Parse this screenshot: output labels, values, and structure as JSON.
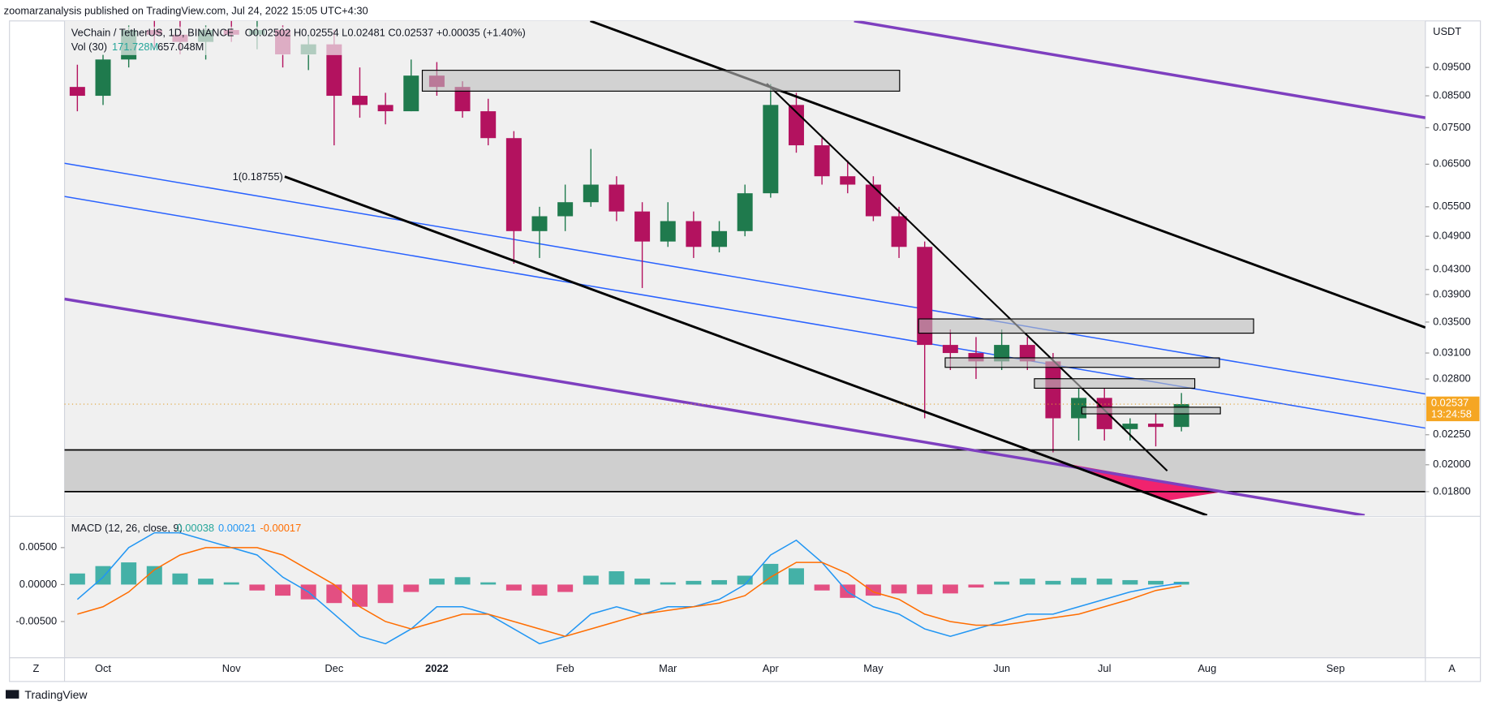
{
  "header": {
    "publisher": "zoomarzanalysis published on TradingView.com, Jul 24, 2022 15:05 UTC+4:30",
    "brand": "TradingView",
    "corner_left": "Z",
    "corner_right": "A"
  },
  "chart_data": [
    {
      "type": "candlestick",
      "title": "VeChain / TetherUS, 1D, BINANCE",
      "ohlc_text": "O0.02502 H0.02554 L0.02481 C0.02537 +0.00035 (+1.40%)",
      "volume_label": "Vol (30)",
      "volume_values": [
        "171.728M",
        "657.048M"
      ],
      "annotation": "1(0.18755)",
      "currency": "USDT",
      "countdown": "13:24:58",
      "up_color": "#1f7a4d",
      "down_color": "#b3125f",
      "log_scale": true,
      "ylim": [
        0.0164,
        0.114
      ],
      "yticks": [
        {
          "value": 0.095,
          "label": "0.09500"
        },
        {
          "value": 0.085,
          "label": "0.08500"
        },
        {
          "value": 0.075,
          "label": "0.07500"
        },
        {
          "value": 0.065,
          "label": "0.06500"
        },
        {
          "value": 0.055,
          "label": "0.05500"
        },
        {
          "value": 0.049,
          "label": "0.04900"
        },
        {
          "value": 0.043,
          "label": "0.04300"
        },
        {
          "value": 0.039,
          "label": "0.03900"
        },
        {
          "value": 0.035,
          "label": "0.03500"
        },
        {
          "value": 0.031,
          "label": "0.03100"
        },
        {
          "value": 0.028,
          "label": "0.02800"
        },
        {
          "value": 0.0225,
          "label": "0.02250"
        },
        {
          "value": 0.02,
          "label": "0.02000"
        },
        {
          "value": 0.018,
          "label": "0.01800"
        }
      ],
      "categories": [
        null,
        "Oct",
        null,
        null,
        null,
        null,
        "Nov",
        null,
        null,
        null,
        "Dec",
        null,
        null,
        null,
        "2022",
        null,
        null,
        null,
        null,
        "Feb",
        null,
        null,
        null,
        "Mar",
        null,
        null,
        null,
        "Apr",
        null,
        null,
        null,
        "May",
        null,
        null,
        null,
        null,
        "Jun",
        null,
        null,
        null,
        "Jul",
        null,
        null,
        null,
        "Aug",
        null,
        null,
        null,
        null,
        "Sep",
        null,
        null,
        null
      ],
      "open": [
        0.088,
        0.085,
        0.098,
        0.11,
        0.108,
        0.105,
        0.11,
        0.108,
        0.11,
        0.1,
        0.104,
        0.085,
        0.082,
        0.08,
        0.092,
        0.088,
        0.08,
        0.072,
        0.05,
        0.053,
        0.056,
        0.06,
        0.054,
        0.048,
        0.052,
        0.047,
        0.05,
        0.058,
        0.082,
        0.07,
        0.062,
        0.06,
        0.053,
        0.047,
        0.032,
        0.031,
        0.03,
        0.032,
        0.03,
        0.024,
        0.026,
        0.023,
        0.0235,
        0.0232,
        null,
        null,
        null,
        null,
        null,
        null,
        null,
        null,
        null
      ],
      "high": [
        0.096,
        0.1,
        0.112,
        0.116,
        0.114,
        0.112,
        0.114,
        0.114,
        0.112,
        0.108,
        0.11,
        0.095,
        0.086,
        0.098,
        0.097,
        0.09,
        0.084,
        0.074,
        0.055,
        0.06,
        0.069,
        0.062,
        0.056,
        0.056,
        0.054,
        0.052,
        0.06,
        0.089,
        0.086,
        0.072,
        0.066,
        0.062,
        0.055,
        0.048,
        0.034,
        0.033,
        0.034,
        0.033,
        0.031,
        0.027,
        0.027,
        0.024,
        0.0245,
        0.0265,
        null,
        null,
        null,
        null,
        null,
        null,
        null,
        null,
        null
      ],
      "low": [
        0.08,
        0.082,
        0.095,
        0.102,
        0.1,
        0.098,
        0.105,
        0.102,
        0.095,
        0.094,
        0.07,
        0.078,
        0.076,
        0.08,
        0.085,
        0.078,
        0.07,
        0.044,
        0.045,
        0.05,
        0.055,
        0.052,
        0.04,
        0.047,
        0.045,
        0.046,
        0.049,
        0.057,
        0.068,
        0.06,
        0.058,
        0.052,
        0.045,
        0.024,
        0.029,
        0.028,
        0.029,
        0.029,
        0.021,
        0.022,
        0.022,
        0.022,
        0.0215,
        0.0228,
        null,
        null,
        null,
        null,
        null,
        null,
        null,
        null,
        null
      ],
      "close": [
        0.085,
        0.098,
        0.11,
        0.108,
        0.105,
        0.11,
        0.108,
        0.11,
        0.1,
        0.104,
        0.085,
        0.082,
        0.08,
        0.092,
        0.088,
        0.08,
        0.072,
        0.05,
        0.053,
        0.056,
        0.06,
        0.054,
        0.048,
        0.052,
        0.047,
        0.05,
        0.058,
        0.082,
        0.07,
        0.062,
        0.06,
        0.053,
        0.047,
        0.032,
        0.031,
        0.03,
        0.032,
        0.03,
        0.024,
        0.026,
        0.023,
        0.0235,
        0.0232,
        0.02537,
        null,
        null,
        null,
        null,
        null,
        null,
        null,
        null,
        null
      ]
    },
    {
      "type": "macd",
      "title": "MACD (12, 26, close, 9)",
      "ylim": [
        -0.0099,
        0.0091
      ],
      "yticks": [
        {
          "value": 0.005,
          "label": "0.00500"
        },
        {
          "value": 0,
          "label": "0.00000"
        },
        {
          "value": -0.005,
          "label": "-0.00500"
        }
      ],
      "histogram_up_color": "#26a69a",
      "histogram_down_color": "#e0336f",
      "macd_color": "#2196f3",
      "signal_color": "#ff6d00",
      "histogram": [
        0.0015,
        0.0025,
        0.003,
        0.0025,
        0.0015,
        0.0008,
        0.0003,
        -0.0008,
        -0.0015,
        -0.002,
        -0.0025,
        -0.003,
        -0.0025,
        -0.001,
        0.0008,
        0.001,
        0.0003,
        -0.0008,
        -0.0015,
        -0.001,
        0.0012,
        0.0018,
        0.0008,
        0.0003,
        0.0005,
        0.0006,
        0.0012,
        0.0028,
        0.0022,
        -0.0008,
        -0.0018,
        -0.0015,
        -0.0012,
        -0.0013,
        -0.0012,
        -0.0004,
        0.0004,
        0.0008,
        0.0005,
        0.0009,
        0.0008,
        0.0006,
        0.0005,
        0.00038,
        null,
        null,
        null,
        null,
        null,
        null,
        null,
        null,
        null
      ],
      "macd": [
        -0.002,
        0.001,
        0.005,
        0.007,
        0.007,
        0.006,
        0.005,
        0.004,
        0.001,
        -0.001,
        -0.004,
        -0.007,
        -0.008,
        -0.006,
        -0.003,
        -0.003,
        -0.004,
        -0.006,
        -0.008,
        -0.007,
        -0.004,
        -0.003,
        -0.004,
        -0.003,
        -0.003,
        -0.002,
        0,
        0.004,
        0.006,
        0.003,
        -0.001,
        -0.003,
        -0.004,
        -0.006,
        -0.007,
        -0.006,
        -0.005,
        -0.004,
        -0.004,
        -0.003,
        -0.002,
        -0.001,
        -0.0003,
        0.00021,
        null,
        null,
        null,
        null,
        null,
        null,
        null,
        null,
        null
      ],
      "signal": [
        -0.004,
        -0.003,
        -0.001,
        0.002,
        0.004,
        0.005,
        0.005,
        0.005,
        0.004,
        0.002,
        0,
        -0.003,
        -0.005,
        -0.006,
        -0.005,
        -0.004,
        -0.004,
        -0.005,
        -0.006,
        -0.007,
        -0.006,
        -0.005,
        -0.004,
        -0.0035,
        -0.003,
        -0.0025,
        -0.0015,
        0.001,
        0.003,
        0.003,
        0.0015,
        -0.001,
        -0.002,
        -0.004,
        -0.005,
        -0.0055,
        -0.0055,
        -0.005,
        -0.0045,
        -0.004,
        -0.003,
        -0.002,
        -0.0008,
        -0.00017,
        null,
        null,
        null,
        null,
        null,
        null,
        null,
        null,
        null
      ]
    }
  ]
}
